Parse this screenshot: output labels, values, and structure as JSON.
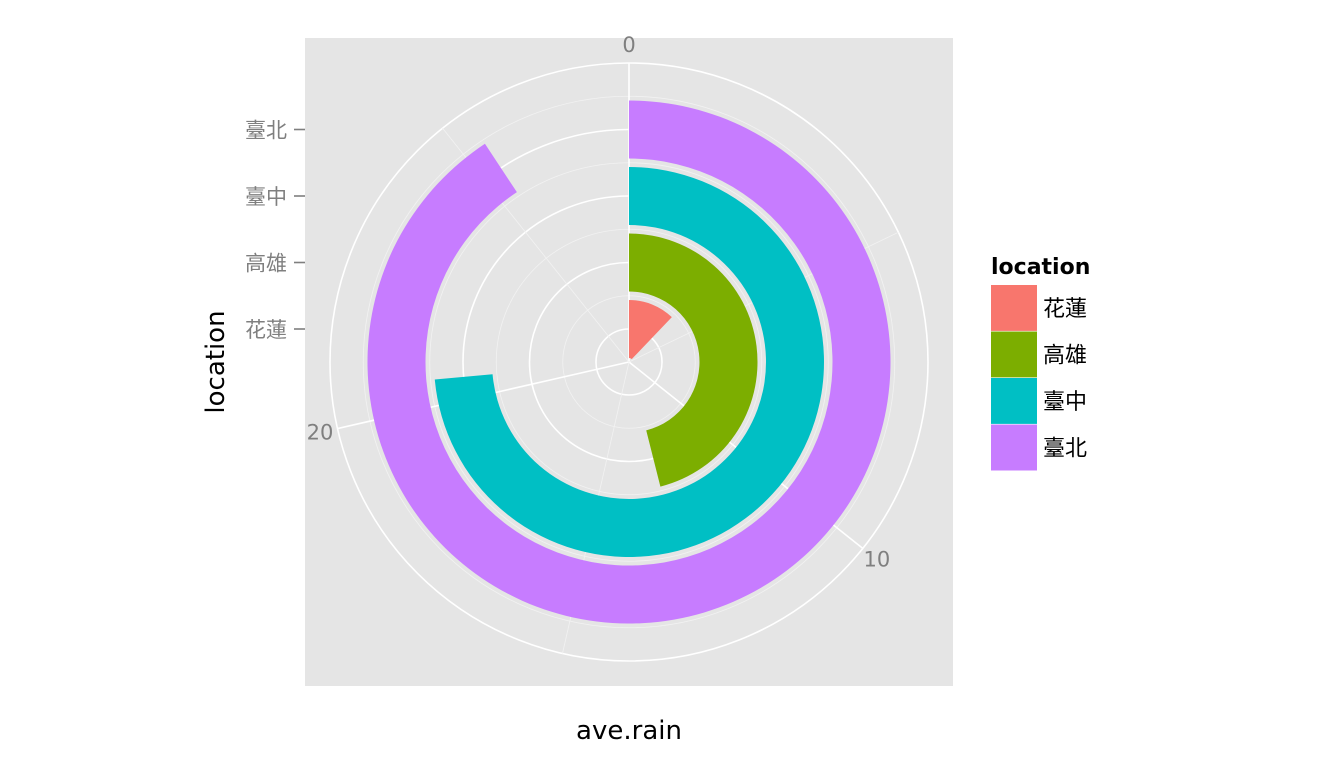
{
  "chart_data": {
    "type": "bar",
    "coord": "polar",
    "theta_axis": "ave.rain",
    "radial_axis": "location",
    "xlabel": "ave.rain",
    "ylabel": "location",
    "categories": [
      "花蓮",
      "高雄",
      "臺中",
      "臺北"
    ],
    "values": [
      3.4,
      12.9,
      20.6,
      25.4
    ],
    "theta_range": [
      0,
      28
    ],
    "theta_ticks": [
      "0",
      "10",
      "20"
    ],
    "theta_tick_values": [
      0,
      10,
      20
    ],
    "colors": [
      "#F8766D",
      "#7CAE00",
      "#00BFC4",
      "#C77CFF"
    ],
    "panel_background": "#E5E5E5",
    "grid": true,
    "legend": {
      "title": "location",
      "position": "right",
      "items": [
        "花蓮",
        "高雄",
        "臺中",
        "臺北"
      ]
    }
  }
}
